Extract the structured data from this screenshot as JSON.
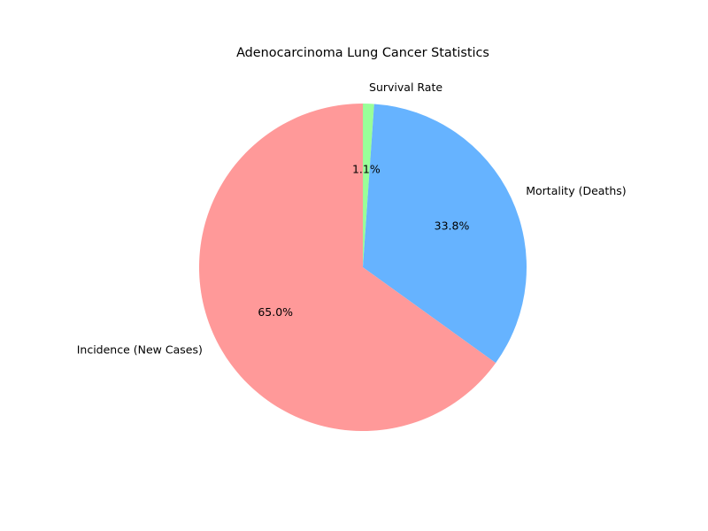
{
  "chart_data": {
    "type": "pie",
    "title": "Adenocarcinoma Lung Cancer Statistics",
    "start_angle_deg": 90,
    "direction": "clockwise",
    "slices": [
      {
        "label": "Survival Rate",
        "value": 1.1,
        "pct_label": "1.1%",
        "color": "#99ff99"
      },
      {
        "label": "Mortality (Deaths)",
        "value": 33.8,
        "pct_label": "33.8%",
        "color": "#66b3ff"
      },
      {
        "label": "Incidence (New Cases)",
        "value": 65.0,
        "pct_label": "65.0%",
        "color": "#ff9999"
      }
    ]
  }
}
